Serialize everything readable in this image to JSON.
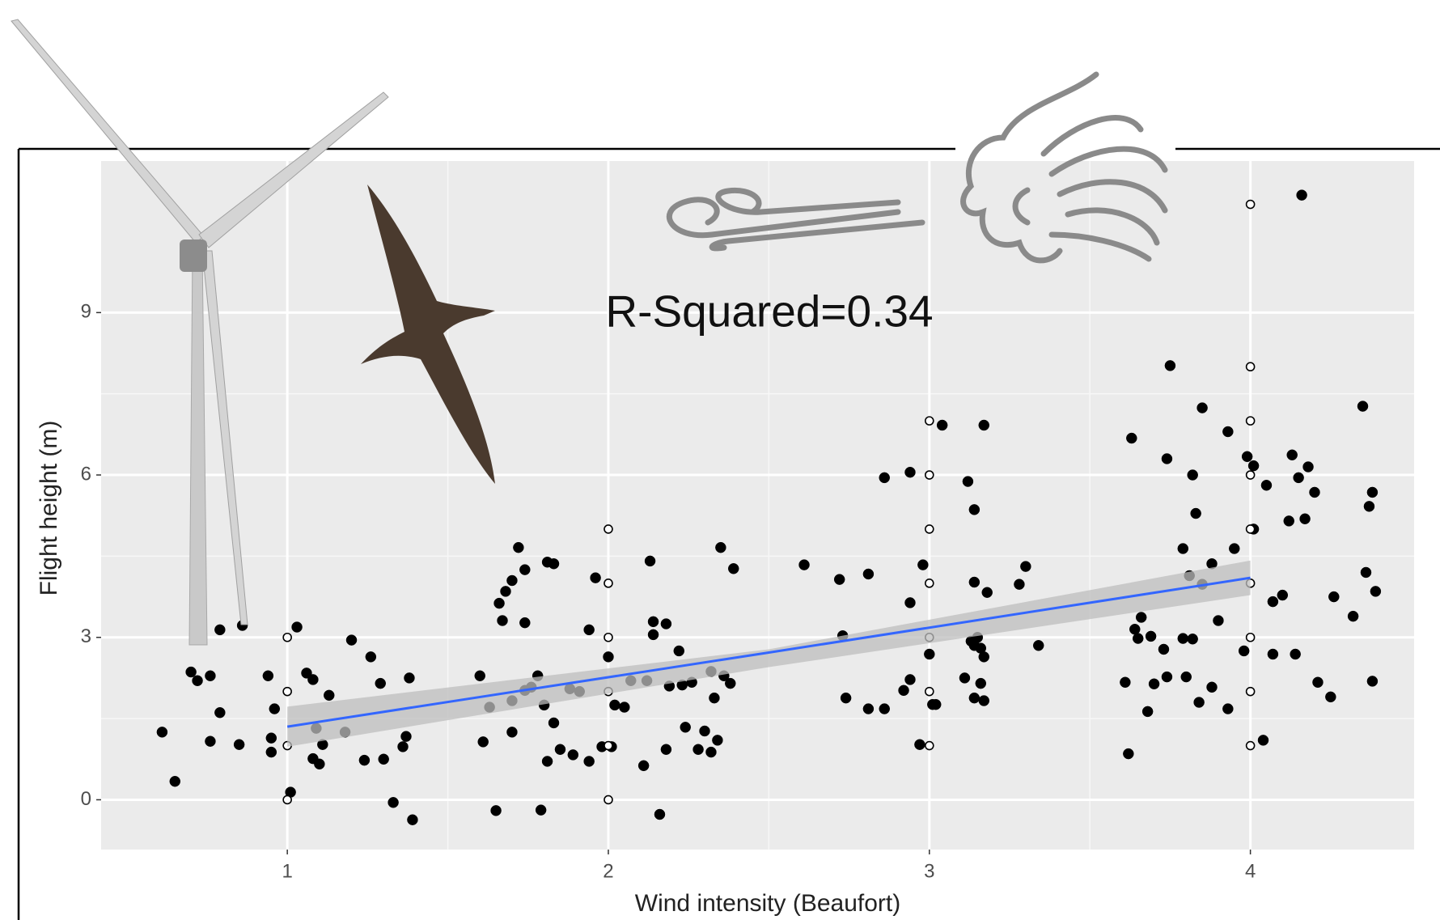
{
  "chart_data": {
    "type": "scatter",
    "annotation": "R-Squared=0.34",
    "x_label": "Wind intensity (Beaufort)",
    "y_label": "Flight height (m)",
    "xlim": [
      0.42,
      4.51
    ],
    "ylim": [
      -0.92,
      11.8
    ],
    "xticks": [
      1,
      2,
      3,
      4
    ],
    "yticks": [
      0,
      3,
      6,
      9
    ],
    "grid": true,
    "series": [
      {
        "color": "#000000",
        "marker": "filled",
        "x": [
          0.61,
          0.65,
          0.7,
          0.72,
          0.76,
          0.79,
          0.79,
          0.76,
          0.85,
          0.86,
          0.94,
          0.95,
          0.95,
          0.96,
          1.03,
          1.01,
          1.06,
          1.08,
          1.09,
          1.08,
          1.1,
          1.13,
          1.11,
          1.2,
          1.18,
          1.24,
          1.26,
          1.29,
          1.3,
          1.33,
          1.38,
          1.37,
          1.39,
          1.36,
          1.6,
          1.61,
          1.63,
          1.65,
          1.66,
          1.68,
          1.67,
          1.7,
          1.72,
          1.74,
          1.74,
          1.7,
          1.7,
          1.74,
          1.76,
          1.78,
          1.79,
          1.8,
          1.81,
          1.83,
          1.81,
          1.83,
          1.85,
          1.88,
          1.89,
          1.91,
          1.94,
          1.94,
          1.96,
          1.98,
          2.01,
          2.0,
          2.02,
          2.05,
          2.07,
          2.11,
          2.12,
          2.13,
          2.14,
          2.14,
          2.18,
          2.16,
          2.18,
          2.19,
          2.22,
          2.23,
          2.24,
          2.26,
          2.28,
          2.3,
          2.32,
          2.33,
          2.35,
          2.34,
          2.36,
          2.38,
          2.39,
          2.32,
          2.61,
          2.72,
          2.73,
          2.74,
          2.81,
          2.81,
          2.86,
          2.86,
          2.94,
          2.94,
          2.92,
          2.94,
          2.97,
          2.98,
          3.0,
          3.01,
          3.02,
          3.04,
          3.12,
          3.14,
          3.14,
          3.17,
          3.11,
          3.13,
          3.14,
          3.15,
          3.16,
          3.17,
          3.16,
          3.14,
          3.17,
          3.18,
          3.28,
          3.3,
          3.34,
          3.61,
          3.62,
          3.63,
          3.64,
          3.65,
          3.66,
          3.68,
          3.69,
          3.7,
          3.73,
          3.74,
          3.74,
          3.75,
          3.79,
          3.79,
          3.8,
          3.81,
          3.82,
          3.82,
          3.83,
          3.84,
          3.85,
          3.85,
          3.88,
          3.88,
          3.9,
          3.93,
          3.93,
          3.95,
          3.98,
          3.99,
          4.01,
          4.01,
          4.04,
          4.05,
          4.07,
          4.1,
          4.12,
          4.13,
          4.14,
          4.15,
          4.16,
          4.17,
          4.18,
          4.2,
          4.21,
          4.25,
          4.26,
          4.32,
          4.35,
          4.36,
          4.37,
          4.38,
          4.38,
          4.39,
          4.07
        ],
        "y": [
          1.25,
          0.34,
          2.36,
          2.2,
          2.29,
          3.14,
          1.61,
          1.08,
          1.02,
          3.22,
          2.29,
          1.14,
          0.88,
          1.68,
          3.19,
          0.14,
          2.34,
          2.22,
          1.32,
          0.76,
          0.66,
          1.93,
          1.02,
          2.95,
          1.25,
          0.73,
          2.64,
          2.15,
          0.75,
          -0.05,
          2.25,
          1.17,
          -0.37,
          0.98,
          2.29,
          1.07,
          1.71,
          -0.2,
          3.63,
          3.85,
          3.31,
          4.05,
          4.66,
          4.25,
          3.27,
          1.25,
          1.83,
          2.02,
          2.08,
          2.29,
          -0.19,
          1.75,
          4.39,
          4.36,
          0.71,
          1.42,
          0.93,
          2.05,
          0.83,
          2.0,
          0.71,
          3.14,
          4.1,
          0.98,
          0.98,
          2.64,
          1.75,
          1.71,
          2.2,
          0.63,
          2.2,
          4.41,
          3.29,
          3.05,
          3.25,
          -0.27,
          0.93,
          2.1,
          2.75,
          2.12,
          1.34,
          2.17,
          0.93,
          1.27,
          0.88,
          1.88,
          4.66,
          1.1,
          2.29,
          2.15,
          4.27,
          2.37,
          4.34,
          4.07,
          3.03,
          1.88,
          4.17,
          1.68,
          5.95,
          1.68,
          6.05,
          3.64,
          2.02,
          2.22,
          1.02,
          4.34,
          2.69,
          1.76,
          1.76,
          6.92,
          5.88,
          5.36,
          4.02,
          6.92,
          2.25,
          2.93,
          2.85,
          3.0,
          2.8,
          2.64,
          2.15,
          1.88,
          1.83,
          3.83,
          3.98,
          4.31,
          2.85,
          2.17,
          0.85,
          6.68,
          3.15,
          2.98,
          3.37,
          1.63,
          3.02,
          2.14,
          2.78,
          6.3,
          2.27,
          8.02,
          2.98,
          4.64,
          2.27,
          4.14,
          6.0,
          2.97,
          5.29,
          1.8,
          7.24,
          3.98,
          2.08,
          4.36,
          3.31,
          6.8,
          1.68,
          4.64,
          2.75,
          6.34,
          6.17,
          5.0,
          1.1,
          5.81,
          2.69,
          3.78,
          5.15,
          6.37,
          2.69,
          5.95,
          11.17,
          5.19,
          6.15,
          5.68,
          2.17,
          1.9,
          3.75,
          3.39,
          7.27,
          4.2,
          5.42,
          5.68,
          2.19,
          3.85,
          3.66
        ]
      },
      {
        "color": "#000000",
        "marker": "open",
        "x": [
          1,
          1,
          1,
          1,
          2,
          2,
          2,
          2,
          2,
          2,
          3,
          3,
          3,
          3,
          3,
          3,
          3,
          4,
          4,
          4,
          4,
          4,
          4,
          4,
          4,
          4
        ],
        "y": [
          3,
          2,
          1,
          0,
          5,
          4,
          3,
          2,
          1,
          0,
          7,
          6,
          5,
          4,
          3,
          2,
          1,
          11,
          8,
          7,
          6,
          5,
          4,
          3,
          2,
          1
        ]
      }
    ],
    "fit": {
      "color": "#3366ff",
      "band_color": "#bdbdbd",
      "x": [
        1,
        2.5,
        4
      ],
      "y": [
        1.35,
        2.72,
        4.1
      ],
      "lower": [
        0.98,
        2.45,
        3.78
      ],
      "upper": [
        1.72,
        2.78,
        4.42
      ]
    }
  }
}
